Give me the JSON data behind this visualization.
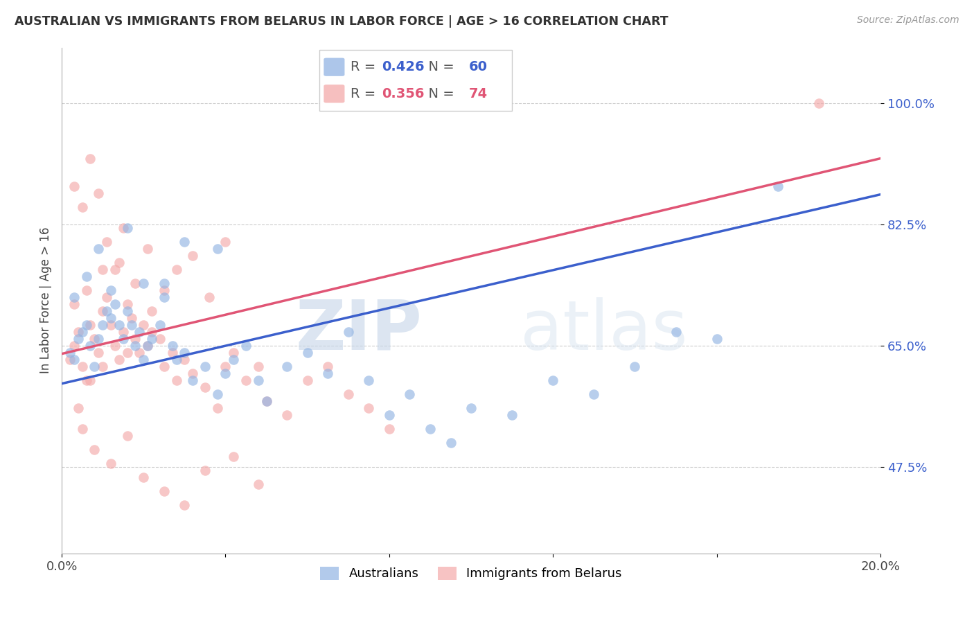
{
  "title": "AUSTRALIAN VS IMMIGRANTS FROM BELARUS IN LABOR FORCE | AGE > 16 CORRELATION CHART",
  "source": "Source: ZipAtlas.com",
  "ylabel": "In Labor Force | Age > 16",
  "xlim": [
    0.0,
    0.2
  ],
  "ylim": [
    0.35,
    1.08
  ],
  "yticks": [
    0.475,
    0.65,
    0.825,
    1.0
  ],
  "ytick_labels": [
    "47.5%",
    "65.0%",
    "82.5%",
    "100.0%"
  ],
  "xticks": [
    0.0,
    0.04,
    0.08,
    0.12,
    0.16,
    0.2
  ],
  "xtick_labels": [
    "0.0%",
    "",
    "",
    "",
    "",
    "20.0%"
  ],
  "blue_R": 0.426,
  "blue_N": 60,
  "pink_R": 0.356,
  "pink_N": 74,
  "blue_color": "#92B4E3",
  "pink_color": "#F4AAAA",
  "blue_line_color": "#3B5FCC",
  "pink_line_color": "#E05575",
  "blue_scatter_x": [
    0.002,
    0.003,
    0.004,
    0.005,
    0.006,
    0.007,
    0.008,
    0.009,
    0.01,
    0.011,
    0.012,
    0.013,
    0.014,
    0.015,
    0.016,
    0.017,
    0.018,
    0.019,
    0.02,
    0.021,
    0.022,
    0.024,
    0.025,
    0.027,
    0.028,
    0.03,
    0.032,
    0.035,
    0.038,
    0.04,
    0.042,
    0.045,
    0.048,
    0.05,
    0.055,
    0.06,
    0.065,
    0.07,
    0.075,
    0.08,
    0.085,
    0.09,
    0.095,
    0.1,
    0.11,
    0.12,
    0.13,
    0.14,
    0.15,
    0.16,
    0.003,
    0.006,
    0.009,
    0.012,
    0.016,
    0.02,
    0.025,
    0.03,
    0.038,
    0.175
  ],
  "blue_scatter_y": [
    0.64,
    0.63,
    0.66,
    0.67,
    0.68,
    0.65,
    0.62,
    0.66,
    0.68,
    0.7,
    0.69,
    0.71,
    0.68,
    0.66,
    0.7,
    0.68,
    0.65,
    0.67,
    0.63,
    0.65,
    0.66,
    0.68,
    0.72,
    0.65,
    0.63,
    0.64,
    0.6,
    0.62,
    0.58,
    0.61,
    0.63,
    0.65,
    0.6,
    0.57,
    0.62,
    0.64,
    0.61,
    0.67,
    0.6,
    0.55,
    0.58,
    0.53,
    0.51,
    0.56,
    0.55,
    0.6,
    0.58,
    0.62,
    0.67,
    0.66,
    0.72,
    0.75,
    0.79,
    0.73,
    0.82,
    0.74,
    0.74,
    0.8,
    0.79,
    0.88
  ],
  "pink_scatter_x": [
    0.002,
    0.003,
    0.004,
    0.005,
    0.006,
    0.007,
    0.008,
    0.009,
    0.01,
    0.011,
    0.012,
    0.013,
    0.014,
    0.015,
    0.016,
    0.017,
    0.018,
    0.019,
    0.02,
    0.021,
    0.022,
    0.024,
    0.025,
    0.027,
    0.028,
    0.03,
    0.032,
    0.035,
    0.038,
    0.04,
    0.042,
    0.045,
    0.048,
    0.05,
    0.055,
    0.06,
    0.065,
    0.07,
    0.075,
    0.08,
    0.003,
    0.005,
    0.007,
    0.009,
    0.011,
    0.013,
    0.015,
    0.018,
    0.021,
    0.025,
    0.028,
    0.032,
    0.036,
    0.04,
    0.005,
    0.008,
    0.012,
    0.016,
    0.02,
    0.025,
    0.03,
    0.035,
    0.042,
    0.048,
    0.003,
    0.006,
    0.01,
    0.014,
    0.004,
    0.007,
    0.01,
    0.016,
    0.022,
    0.185
  ],
  "pink_scatter_y": [
    0.63,
    0.65,
    0.67,
    0.62,
    0.6,
    0.68,
    0.66,
    0.64,
    0.7,
    0.72,
    0.68,
    0.65,
    0.63,
    0.67,
    0.71,
    0.69,
    0.66,
    0.64,
    0.68,
    0.65,
    0.7,
    0.66,
    0.62,
    0.64,
    0.6,
    0.63,
    0.61,
    0.59,
    0.56,
    0.62,
    0.64,
    0.6,
    0.62,
    0.57,
    0.55,
    0.6,
    0.62,
    0.58,
    0.56,
    0.53,
    0.88,
    0.85,
    0.92,
    0.87,
    0.8,
    0.76,
    0.82,
    0.74,
    0.79,
    0.73,
    0.76,
    0.78,
    0.72,
    0.8,
    0.53,
    0.5,
    0.48,
    0.52,
    0.46,
    0.44,
    0.42,
    0.47,
    0.49,
    0.45,
    0.71,
    0.73,
    0.76,
    0.77,
    0.56,
    0.6,
    0.62,
    0.64,
    0.67,
    1.0
  ],
  "watermark_zip": "ZIP",
  "watermark_atlas": "atlas",
  "background_color": "#ffffff",
  "grid_color": "#cccccc",
  "blue_line_x0": 0.0,
  "blue_line_y0": 0.595,
  "blue_line_x1": 0.2,
  "blue_line_y1": 0.868,
  "pink_line_x0": 0.0,
  "pink_line_y0": 0.638,
  "pink_line_x1": 0.2,
  "pink_line_y1": 0.92
}
